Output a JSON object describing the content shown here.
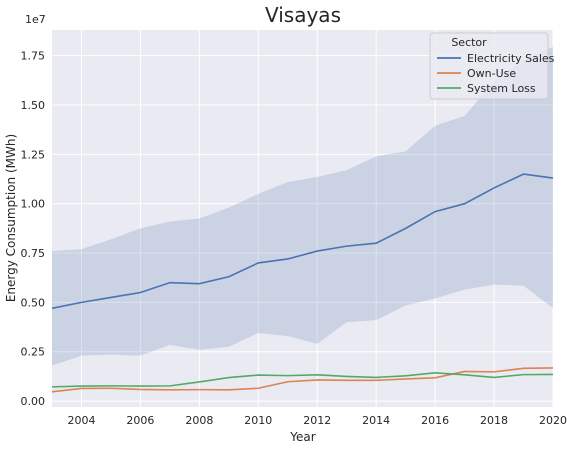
{
  "chart_data": {
    "type": "line",
    "title": "Visayas",
    "xlabel": "Year",
    "ylabel": "Energy Consumption (MWh)",
    "y_offset_label": "1e7",
    "xlim": [
      2003,
      2020
    ],
    "ylim": [
      -0.03,
      1.88
    ],
    "y_unit_multiplier": 10000000,
    "xticks": [
      "2004",
      "2006",
      "2008",
      "2010",
      "2012",
      "2014",
      "2016",
      "2018",
      "2020"
    ],
    "yticks": [
      "0.00",
      "0.25",
      "0.50",
      "0.75",
      "1.00",
      "1.25",
      "1.50",
      "1.75"
    ],
    "grid": true,
    "background": "#eaeaf2",
    "legend": {
      "title": "Sector",
      "position": "top-right"
    },
    "x": [
      2003,
      2004,
      2005,
      2006,
      2007,
      2008,
      2009,
      2010,
      2011,
      2012,
      2013,
      2014,
      2015,
      2016,
      2017,
      2018,
      2019,
      2020
    ],
    "series": [
      {
        "name": "Electricity Sales",
        "color": "#4c72b0",
        "values": [
          0.47,
          0.5,
          0.525,
          0.55,
          0.6,
          0.595,
          0.63,
          0.7,
          0.72,
          0.76,
          0.785,
          0.8,
          0.875,
          0.96,
          1.0,
          1.08,
          1.15,
          1.13
        ],
        "ci_lower": [
          0.18,
          0.23,
          0.235,
          0.23,
          0.285,
          0.26,
          0.275,
          0.345,
          0.33,
          0.29,
          0.4,
          0.41,
          0.485,
          0.52,
          0.565,
          0.59,
          0.585,
          0.47
        ],
        "ci_upper": [
          0.76,
          0.77,
          0.82,
          0.875,
          0.91,
          0.925,
          0.98,
          1.05,
          1.11,
          1.135,
          1.17,
          1.24,
          1.265,
          1.395,
          1.445,
          1.62,
          1.73,
          1.795
        ]
      },
      {
        "name": "Own-Use",
        "color": "#dd8452",
        "values": [
          0.047,
          0.064,
          0.065,
          0.059,
          0.057,
          0.058,
          0.057,
          0.065,
          0.098,
          0.107,
          0.105,
          0.105,
          0.112,
          0.118,
          0.15,
          0.148,
          0.166,
          0.168
        ]
      },
      {
        "name": "System Loss",
        "color": "#55a868",
        "values": [
          0.072,
          0.076,
          0.077,
          0.076,
          0.077,
          0.097,
          0.119,
          0.132,
          0.129,
          0.133,
          0.125,
          0.12,
          0.128,
          0.143,
          0.133,
          0.12,
          0.134,
          0.135
        ]
      }
    ]
  }
}
